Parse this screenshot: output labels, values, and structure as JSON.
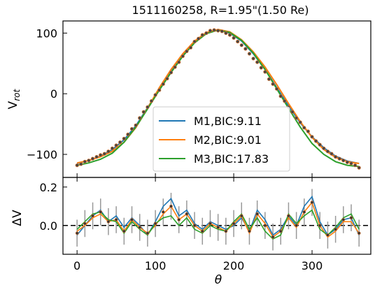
{
  "chart_data": {
    "title": "1511160258, R=1.95\"(1.50 Re)",
    "panels": [
      {
        "type": "line",
        "ylabel_main": "V",
        "ylabel_sub": "rot",
        "xlim": [
          -18,
          375
        ],
        "ylim": [
          -138,
          120
        ],
        "yticks": [
          -100,
          0,
          100
        ],
        "ytick_labels": [
          "−100",
          "0",
          "100"
        ],
        "legend": "lower center",
        "series": [
          {
            "name": "M1,BIC:9.11",
            "color": "#1f77b4",
            "x": [
              0,
              15,
              30,
              45,
              60,
              75,
              90,
              105,
              120,
              135,
              150,
              165,
              180,
              195,
              210,
              225,
              240,
              255,
              270,
              285,
              300,
              315,
              330,
              345,
              360
            ],
            "y": [
              -115,
              -110,
              -103,
              -92,
              -76,
              -53,
              -23,
              8,
              37,
              64,
              86,
              100,
              105,
              100,
              87,
              66,
              40,
              10,
              -20,
              -48,
              -71,
              -89,
              -103,
              -111,
              -115
            ]
          },
          {
            "name": "M2,BIC:9.01",
            "color": "#ff7f0e",
            "x": [
              0,
              15,
              30,
              45,
              60,
              75,
              90,
              105,
              120,
              135,
              150,
              165,
              180,
              195,
              210,
              225,
              240,
              255,
              270,
              285,
              300,
              315,
              330,
              345,
              360
            ],
            "y": [
              -114,
              -110,
              -104,
              -95,
              -80,
              -56,
              -24,
              10,
              40,
              66,
              87,
              101,
              106,
              102,
              89,
              69,
              44,
              15,
              -16,
              -46,
              -72,
              -92,
              -105,
              -112,
              -115
            ]
          },
          {
            "name": "M3,BIC:17.83",
            "color": "#2ca02c",
            "x": [
              0,
              15,
              30,
              45,
              60,
              75,
              90,
              105,
              120,
              135,
              150,
              165,
              180,
              195,
              210,
              225,
              240,
              255,
              270,
              285,
              300,
              315,
              330,
              345,
              360
            ],
            "y": [
              -118,
              -114,
              -108,
              -98,
              -80,
              -55,
              -25,
              6,
              35,
              62,
              84,
              99,
              105,
              101,
              88,
              67,
              40,
              8,
              -24,
              -55,
              -82,
              -100,
              -112,
              -118,
              -120
            ]
          }
        ],
        "points": {
          "x": [
            0,
            5,
            10,
            15,
            20,
            25,
            30,
            35,
            40,
            45,
            50,
            55,
            60,
            65,
            70,
            75,
            80,
            85,
            90,
            95,
            100,
            105,
            110,
            115,
            120,
            125,
            130,
            135,
            140,
            145,
            150,
            155,
            160,
            165,
            170,
            175,
            180,
            185,
            190,
            195,
            200,
            205,
            210,
            215,
            220,
            225,
            230,
            235,
            240,
            245,
            250,
            255,
            260,
            265,
            270,
            275,
            280,
            285,
            290,
            295,
            300,
            305,
            310,
            315,
            320,
            325,
            330,
            335,
            340,
            345,
            350,
            355,
            360
          ],
          "y": [
            -118,
            -116,
            -112,
            -110,
            -107,
            -104,
            -101,
            -99,
            -95,
            -90,
            -85,
            -80,
            -74,
            -67,
            -58,
            -52,
            -40,
            -30,
            -22,
            -12,
            -2,
            6,
            16,
            25,
            35,
            44,
            52,
            62,
            70,
            76,
            86,
            91,
            97,
            100,
            104,
            105,
            104,
            103,
            100,
            97,
            92,
            86,
            80,
            74,
            66,
            58,
            52,
            43,
            36,
            24,
            16,
            8,
            -4,
            -12,
            -22,
            -30,
            -40,
            -47,
            -56,
            -62,
            -71,
            -78,
            -84,
            -90,
            -95,
            -99,
            -104,
            -107,
            -110,
            -113,
            -115,
            -118,
            -122
          ]
        }
      },
      {
        "type": "line",
        "ylabel": "ΔV",
        "xlabel": "θ",
        "xlim": [
          -18,
          375
        ],
        "ylim": [
          -0.15,
          0.25
        ],
        "yticks": [
          0.0,
          0.2
        ],
        "ytick_labels": [
          "0.0",
          "0.2"
        ],
        "xticks": [
          0,
          100,
          200,
          300
        ],
        "xtick_labels": [
          "0",
          "100",
          "200",
          "300"
        ],
        "zero_line": "dashed black",
        "series": [
          {
            "name": "M1",
            "color": "#1f77b4",
            "x": [
              0,
              10,
              20,
              30,
              40,
              50,
              60,
              70,
              80,
              90,
              100,
              110,
              120,
              130,
              140,
              150,
              160,
              170,
              180,
              190,
              200,
              210,
              220,
              230,
              240,
              250,
              260,
              270,
              280,
              290,
              300,
              310,
              320,
              330,
              340,
              350,
              360
            ],
            "y": [
              -0.05,
              0.0,
              0.05,
              0.08,
              0.02,
              0.05,
              -0.01,
              0.04,
              0.0,
              -0.05,
              0.02,
              0.1,
              0.14,
              0.05,
              0.08,
              0.01,
              -0.02,
              0.02,
              0.0,
              -0.02,
              0.0,
              0.04,
              -0.03,
              0.08,
              0.03,
              -0.05,
              -0.02,
              0.05,
              0.0,
              0.1,
              0.15,
              0.02,
              -0.05,
              -0.02,
              0.03,
              0.04,
              -0.05
            ]
          },
          {
            "name": "M2",
            "color": "#ff7f0e",
            "x": [
              0,
              10,
              20,
              30,
              40,
              50,
              60,
              70,
              80,
              90,
              100,
              110,
              120,
              130,
              140,
              150,
              160,
              170,
              180,
              190,
              200,
              210,
              220,
              230,
              240,
              250,
              260,
              270,
              280,
              290,
              300,
              310,
              320,
              330,
              340,
              350,
              360
            ],
            "y": [
              -0.03,
              0.0,
              0.04,
              0.06,
              0.02,
              0.03,
              -0.03,
              0.03,
              -0.01,
              -0.04,
              0.0,
              0.06,
              0.1,
              0.03,
              0.06,
              0.0,
              -0.03,
              0.01,
              -0.01,
              -0.03,
              0.01,
              0.05,
              -0.04,
              0.06,
              0.01,
              -0.06,
              -0.03,
              0.04,
              -0.01,
              0.07,
              0.12,
              0.0,
              -0.06,
              -0.03,
              0.02,
              0.02,
              -0.04
            ]
          },
          {
            "name": "M3",
            "color": "#2ca02c",
            "x": [
              0,
              10,
              20,
              30,
              40,
              50,
              60,
              70,
              80,
              90,
              100,
              110,
              120,
              130,
              140,
              150,
              160,
              170,
              180,
              190,
              200,
              210,
              220,
              230,
              240,
              250,
              260,
              270,
              280,
              290,
              300,
              310,
              320,
              330,
              340,
              350,
              360
            ],
            "y": [
              -0.02,
              0.02,
              0.06,
              0.07,
              0.03,
              0.02,
              -0.04,
              0.02,
              -0.02,
              -0.05,
              0.01,
              0.04,
              0.05,
              0.0,
              0.04,
              -0.02,
              -0.04,
              0.0,
              -0.02,
              -0.03,
              0.02,
              0.06,
              -0.02,
              0.04,
              -0.03,
              -0.07,
              -0.05,
              0.06,
              0.01,
              0.05,
              0.08,
              -0.02,
              -0.05,
              -0.01,
              0.04,
              0.06,
              -0.02
            ]
          }
        ],
        "points": {
          "x": [
            0,
            10,
            20,
            30,
            40,
            50,
            60,
            70,
            80,
            90,
            100,
            110,
            120,
            130,
            140,
            150,
            160,
            170,
            180,
            190,
            200,
            210,
            220,
            230,
            240,
            250,
            260,
            270,
            280,
            290,
            300,
            310,
            320,
            330,
            340,
            350,
            360
          ],
          "y": [
            -0.04,
            0.01,
            0.05,
            0.07,
            0.02,
            0.03,
            -0.03,
            0.03,
            -0.01,
            -0.04,
            0.01,
            0.07,
            0.1,
            0.03,
            0.06,
            0.0,
            -0.03,
            0.01,
            -0.01,
            -0.03,
            0.01,
            0.05,
            -0.03,
            0.06,
            0.0,
            -0.06,
            -0.03,
            0.05,
            0.0,
            0.07,
            0.12,
            0.0,
            -0.05,
            -0.02,
            0.03,
            0.04,
            -0.04
          ],
          "err": 0.07
        }
      }
    ]
  }
}
